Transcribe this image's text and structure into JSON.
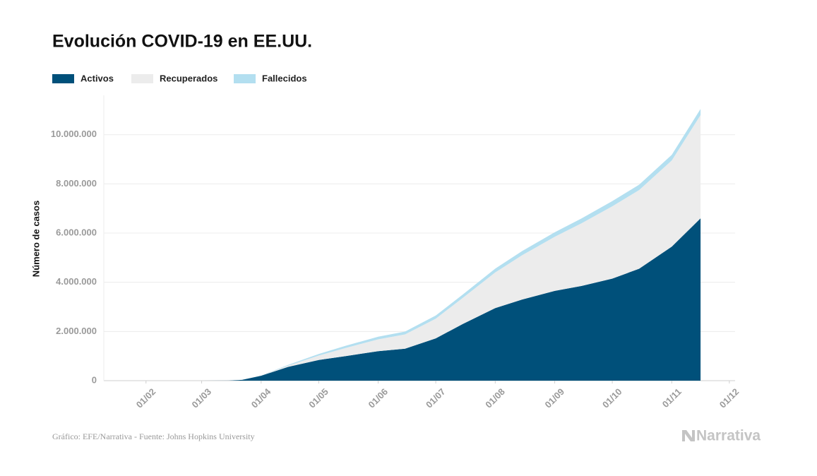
{
  "chart_data": {
    "type": "stacked-area",
    "title": "Evolución COVID-19 en EE.UU.",
    "ylabel": "Número de casos",
    "source": "Gráfico: EFE/Narrativa - Fuente: Johns Hopkins University",
    "brand": "Narrativa",
    "x": [
      "22/01",
      "01/03",
      "15/03",
      "22/03",
      "01/04",
      "15/04",
      "01/05",
      "15/05",
      "01/06",
      "15/06",
      "01/07",
      "15/07",
      "01/08",
      "15/08",
      "01/09",
      "15/09",
      "01/10",
      "15/10",
      "01/11",
      "16/11"
    ],
    "series": [
      {
        "name": "Activos",
        "color": "#00507a",
        "values": [
          1,
          70,
          3000,
          33000,
          200000,
          560000,
          840000,
          1000000,
          1200000,
          1300000,
          1720000,
          2300000,
          2950000,
          3300000,
          3650000,
          3850000,
          4150000,
          4550000,
          5450000,
          6600000
        ]
      },
      {
        "name": "Recuperados",
        "color": "#ececec",
        "values": [
          0,
          7,
          10,
          170,
          8000,
          50000,
          180000,
          330000,
          480000,
          580000,
          800000,
          1060000,
          1450000,
          1800000,
          2200000,
          2550000,
          2940000,
          3200000,
          3500000,
          4200000
        ]
      },
      {
        "name": "Fallecidos",
        "color": "#b3dff0",
        "values": [
          0,
          1,
          60,
          420,
          5000,
          30000,
          65000,
          87000,
          105000,
          116000,
          128000,
          137000,
          154000,
          170000,
          184000,
          196000,
          208000,
          218000,
          231000,
          247000
        ]
      }
    ],
    "xlim": [
      "10/01",
      "04/12"
    ],
    "xticks": [
      "01/02",
      "01/03",
      "01/04",
      "01/05",
      "01/06",
      "01/07",
      "01/08",
      "01/09",
      "01/10",
      "01/11",
      "01/12"
    ],
    "ylim": [
      0,
      11600000
    ],
    "yticks": [
      0,
      {
        "value": 2000000,
        "label": "2.000.000"
      },
      {
        "value": 4000000,
        "label": "4.000.000"
      },
      {
        "value": 6000000,
        "label": "6.000.000"
      },
      {
        "value": 8000000,
        "label": "8.000.000"
      },
      {
        "value": 10000000,
        "label": "10.000.000"
      }
    ],
    "grid": true
  }
}
